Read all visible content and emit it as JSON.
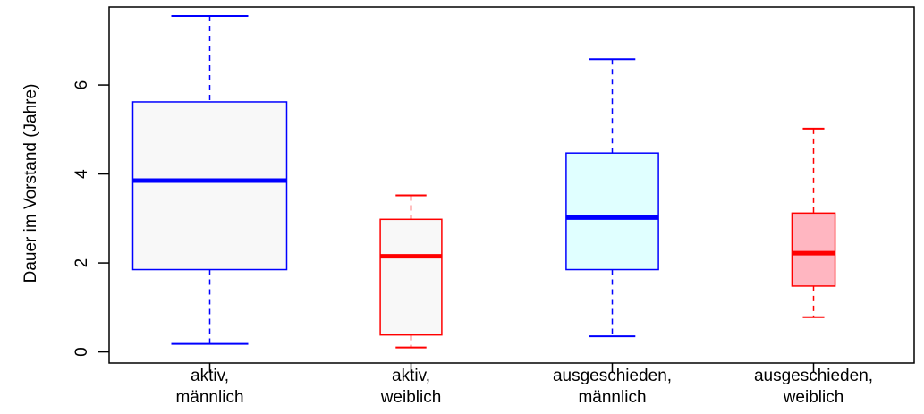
{
  "chart_data": {
    "type": "boxplot",
    "ylabel": "Dauer im Vorstand (Jahre)",
    "xlabel": "",
    "title": "",
    "ylim": [
      -0.25,
      7.75
    ],
    "yticks": [
      0,
      2,
      4,
      6
    ],
    "ytick_labels": [
      "0",
      "2",
      "4",
      "6"
    ],
    "grid": false,
    "categories": [
      [
        "aktiv,",
        "männlich"
      ],
      [
        "aktiv,",
        "weiblich"
      ],
      [
        "ausgeschieden,",
        "männlich"
      ],
      [
        "ausgeschieden,",
        "weiblich"
      ]
    ],
    "boxes": [
      {
        "whisker_low": 0.18,
        "q1": 1.85,
        "median": 3.85,
        "q3": 5.62,
        "whisker_high": 7.55,
        "color": "#0000ff",
        "fill": "#f8f8f8",
        "relative_width": 1.0
      },
      {
        "whisker_low": 0.1,
        "q1": 0.38,
        "median": 2.15,
        "q3": 2.98,
        "whisker_high": 3.52,
        "color": "#ff0000",
        "fill": "#f8f8f8",
        "relative_width": 0.4
      },
      {
        "whisker_low": 0.35,
        "q1": 1.85,
        "median": 3.02,
        "q3": 4.47,
        "whisker_high": 6.58,
        "color": "#0000ff",
        "fill": "#e0ffff",
        "relative_width": 0.6
      },
      {
        "whisker_low": 0.78,
        "q1": 1.48,
        "median": 2.22,
        "q3": 3.12,
        "whisker_high": 5.02,
        "color": "#ff0000",
        "fill": "#ffb6c1",
        "relative_width": 0.28
      }
    ]
  }
}
